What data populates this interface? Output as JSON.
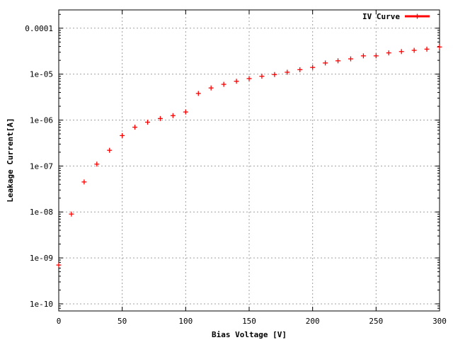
{
  "chart_data": {
    "type": "scatter",
    "xlabel": "Bias Voltage [V]",
    "ylabel": "Leakage Current[A]",
    "xlim": [
      0,
      300
    ],
    "ylim": [
      7e-11,
      0.00025
    ],
    "y_scale": "log",
    "grid": true,
    "legend_position": "top-right",
    "x_ticks": [
      "0",
      "50",
      "100",
      "150",
      "200",
      "250",
      "300"
    ],
    "x_tick_values": [
      0,
      50,
      100,
      150,
      200,
      250,
      300
    ],
    "y_ticks": [
      "1e-10",
      "1e-09",
      "1e-08",
      "1e-07",
      "1e-06",
      "1e-05",
      "0.0001"
    ],
    "y_tick_values": [
      1e-10,
      1e-09,
      1e-08,
      1e-07,
      1e-06,
      1e-05,
      0.0001
    ],
    "series": [
      {
        "name": "IV Curve",
        "color": "#ff0000",
        "marker": "plus",
        "x": [
          0,
          10,
          20,
          30,
          40,
          50,
          60,
          70,
          80,
          90,
          100,
          110,
          120,
          130,
          140,
          150,
          160,
          170,
          180,
          190,
          200,
          210,
          220,
          230,
          240,
          250,
          260,
          270,
          280,
          290,
          300
        ],
        "y": [
          7e-10,
          9e-09,
          4.5e-08,
          1.1e-07,
          2.2e-07,
          4.6e-07,
          7e-07,
          9e-07,
          1.08e-06,
          1.25e-06,
          1.5e-06,
          3.8e-06,
          5e-06,
          6e-06,
          7e-06,
          8e-06,
          9e-06,
          9.8e-06,
          1.1e-05,
          1.25e-05,
          1.4e-05,
          1.75e-05,
          1.95e-05,
          2.15e-05,
          2.5e-05,
          2.5e-05,
          2.9e-05,
          3.1e-05,
          3.3e-05,
          3.5e-05,
          3.9e-05
        ]
      }
    ]
  }
}
